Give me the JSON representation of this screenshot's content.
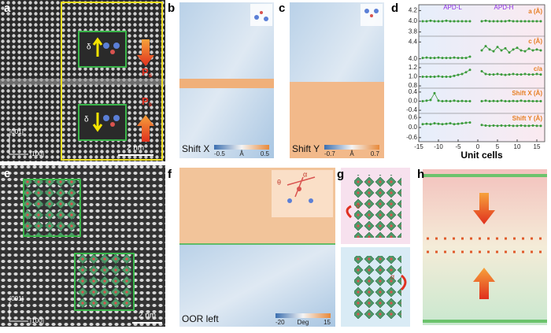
{
  "figure": {
    "a": {
      "label": "a",
      "delta_top": "δ",
      "p_top": "P",
      "p_top_sub": "s",
      "delta_bottom": "δ",
      "p_bottom": "P",
      "p_bottom_sub": "s",
      "axis_y": "[001]",
      "axis_x": "[100]",
      "scale": "2 nm"
    },
    "b": {
      "label": "b",
      "name": "Shift X",
      "cb_min": "-0.5",
      "cb_unit": "Å",
      "cb_max": "0.5"
    },
    "c": {
      "label": "c",
      "name": "Shift Y",
      "cb_min": "-0.7",
      "cb_unit": "Å",
      "cb_max": "0.7"
    },
    "d": {
      "label": "d",
      "apd_left": "APD-L",
      "apd_right": "APD-H",
      "xlabel": "Unit cells",
      "xlim": [
        -15,
        17
      ],
      "xticks": [
        -15,
        -10,
        -5,
        0,
        5,
        10,
        15
      ],
      "x": [
        -14,
        -13,
        -12,
        -11,
        -10,
        -9,
        -8,
        -7,
        -6,
        -5,
        -4,
        -3,
        -2,
        -1,
        0,
        1,
        2,
        3,
        4,
        5,
        6,
        7,
        8,
        9,
        10,
        11,
        12,
        13,
        14,
        15,
        16
      ],
      "rows": [
        {
          "name": "a (Å)",
          "ylim": [
            3.75,
            4.25
          ],
          "yticks": [
            4.2,
            {
              "value": 4,
              "label": "4.0"
            },
            3.8
          ],
          "values": [
            4.0,
            4.0,
            4.01,
            4.0,
            4.0,
            4.0,
            4.01,
            4.0,
            4.0,
            4.0,
            4.0,
            4.0,
            4.0,
            null,
            null,
            4.0,
            4.01,
            4.0,
            4.0,
            4.0,
            4.0,
            4.0,
            4.01,
            4.0,
            4.0,
            4.0,
            4.0,
            4.0,
            4.0,
            4.0,
            4.0
          ]
        },
        {
          "name": "c (Å)",
          "ylim": [
            3.9,
            4.5
          ],
          "yticks": [
            4.4,
            {
              "value": 4,
              "label": "4.0"
            }
          ],
          "values": [
            4.02,
            4.03,
            4.02,
            4.02,
            4.03,
            4.02,
            4.02,
            4.02,
            4.03,
            4.02,
            4.02,
            4.02,
            4.05,
            null,
            null,
            4.2,
            4.3,
            4.22,
            4.18,
            4.28,
            4.2,
            4.25,
            4.15,
            4.22,
            4.26,
            4.2,
            4.18,
            4.24,
            4.2,
            4.22,
            4.2
          ]
        },
        {
          "name": "c/a",
          "ylim": [
            0.75,
            1.25
          ],
          "yticks": [
            1.2,
            {
              "value": 1,
              "label": "1.0"
            },
            0.8
          ],
          "values": [
            1.0,
            1.0,
            1.0,
            1.0,
            1.01,
            1.0,
            1.0,
            1.0,
            1.02,
            1.04,
            1.06,
            1.1,
            1.15,
            null,
            null,
            1.12,
            1.06,
            1.05,
            1.05,
            1.06,
            1.05,
            1.04,
            1.05,
            1.06,
            1.05,
            1.05,
            1.06,
            1.05,
            1.05,
            1.06,
            1.05
          ]
        },
        {
          "name": "Shift X (Å)",
          "ylim": [
            -0.5,
            0.5
          ],
          "yticks": [
            0.4,
            {
              "value": 0,
              "label": "0.0"
            },
            -0.4
          ],
          "values": [
            0.0,
            0.02,
            0.05,
            0.35,
            0.02,
            0.0,
            0.01,
            0.0,
            0.02,
            0.0,
            0.01,
            0.0,
            0.0,
            null,
            null,
            0.0,
            0.02,
            0.0,
            0.01,
            0.0,
            0.02,
            0.0,
            0.0,
            0.01,
            0.0,
            0.02,
            0.0,
            0.01,
            0.0,
            0.0,
            0.0
          ]
        },
        {
          "name": "Shift Y (Å)",
          "ylim": [
            -0.75,
            0.75
          ],
          "yticks": [
            0.6,
            {
              "value": 0,
              "label": "0.0"
            },
            -0.6
          ],
          "values": [
            0.2,
            0.22,
            0.2,
            0.25,
            0.22,
            0.2,
            0.22,
            0.25,
            0.2,
            0.22,
            0.25,
            0.28,
            0.3,
            null,
            null,
            0.15,
            0.12,
            0.1,
            0.12,
            0.1,
            0.12,
            0.1,
            0.12,
            0.1,
            0.1,
            0.12,
            0.1,
            0.1,
            0.12,
            0.1,
            0.1
          ]
        }
      ]
    },
    "e": {
      "label": "e",
      "axis_y": "[001]",
      "axis_x": "[100]",
      "scale": "2 nm"
    },
    "f": {
      "label": "f",
      "name": "OOR left",
      "cb_min": "-20",
      "cb_unit": "Deg",
      "cb_max": "15",
      "theta": "θ",
      "alpha": "α"
    },
    "g": {
      "label": "g",
      "alpha_top": "α",
      "alpha_bottom": "α"
    },
    "h": {
      "label": "h"
    }
  }
}
